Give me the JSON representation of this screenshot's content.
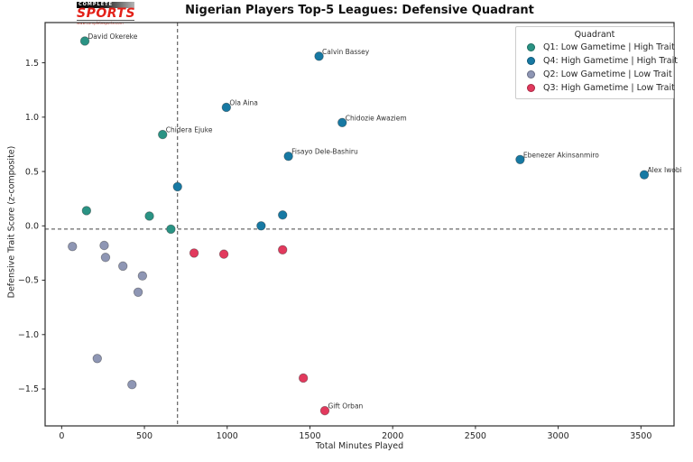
{
  "header": {
    "logo": {
      "line1": "COMPLETE",
      "line2": "SPORTS",
      "line3": "www.completesports.com"
    }
  },
  "chart_data": {
    "type": "scatter",
    "title": "Nigerian Players Top-5 Leagues: Defensive Quadrant",
    "xlabel": "Total Minutes Played",
    "ylabel": "Defensive Trait Score (z-composite)",
    "xlim": [
      -100,
      3700
    ],
    "ylim": [
      -1.84,
      1.87
    ],
    "xticks": [
      0,
      500,
      1000,
      1500,
      2000,
      2500,
      3000,
      3500
    ],
    "yticks": [
      1.5,
      1.0,
      0.5,
      0.0,
      -0.5,
      -1.0,
      -1.5
    ],
    "grid": false,
    "legend": {
      "title": "Quadrant",
      "position": "upper right"
    },
    "reference_lines": {
      "vertical_x": 700,
      "horizontal_y": -0.03,
      "style": "dashed"
    },
    "series": [
      {
        "name": "Q1: Low Gametime | High Trait",
        "color": "#2a9384",
        "points": [
          {
            "x": 140,
            "y": 1.7,
            "label": "David Okereke"
          },
          {
            "x": 610,
            "y": 0.84,
            "label": "Chidera Ejuke"
          },
          {
            "x": 150,
            "y": 0.14
          },
          {
            "x": 530,
            "y": 0.09
          },
          {
            "x": 660,
            "y": -0.03
          }
        ]
      },
      {
        "name": "Q4: High Gametime | High Trait",
        "color": "#1779a3",
        "points": [
          {
            "x": 1555,
            "y": 1.56,
            "label": "Calvin Bassey"
          },
          {
            "x": 995,
            "y": 1.09,
            "label": "Ola Aina"
          },
          {
            "x": 1695,
            "y": 0.95,
            "label": "Chidozie Awaziem"
          },
          {
            "x": 1370,
            "y": 0.64,
            "label": "Fisayo Dele-Bashiru"
          },
          {
            "x": 2770,
            "y": 0.61,
            "label": "Ebenezer Akinsanmiro"
          },
          {
            "x": 3520,
            "y": 0.47,
            "label": "Alex Iwobi"
          },
          {
            "x": 700,
            "y": 0.36
          },
          {
            "x": 1335,
            "y": 0.1
          },
          {
            "x": 1205,
            "y": 0.0
          }
        ]
      },
      {
        "name": "Q2: Low Gametime | Low Trait",
        "color": "#8e96b4",
        "points": [
          {
            "x": 65,
            "y": -0.19
          },
          {
            "x": 257,
            "y": -0.18
          },
          {
            "x": 265,
            "y": -0.29
          },
          {
            "x": 370,
            "y": -0.37
          },
          {
            "x": 488,
            "y": -0.46
          },
          {
            "x": 462,
            "y": -0.61
          },
          {
            "x": 215,
            "y": -1.22
          },
          {
            "x": 425,
            "y": -1.46
          }
        ]
      },
      {
        "name": "Q3: High Gametime | Low Trait",
        "color": "#e2395d",
        "points": [
          {
            "x": 800,
            "y": -0.25
          },
          {
            "x": 980,
            "y": -0.26
          },
          {
            "x": 1335,
            "y": -0.22
          },
          {
            "x": 1460,
            "y": -1.4
          },
          {
            "x": 1590,
            "y": -1.7,
            "label": "Gift Orban"
          }
        ]
      }
    ]
  }
}
